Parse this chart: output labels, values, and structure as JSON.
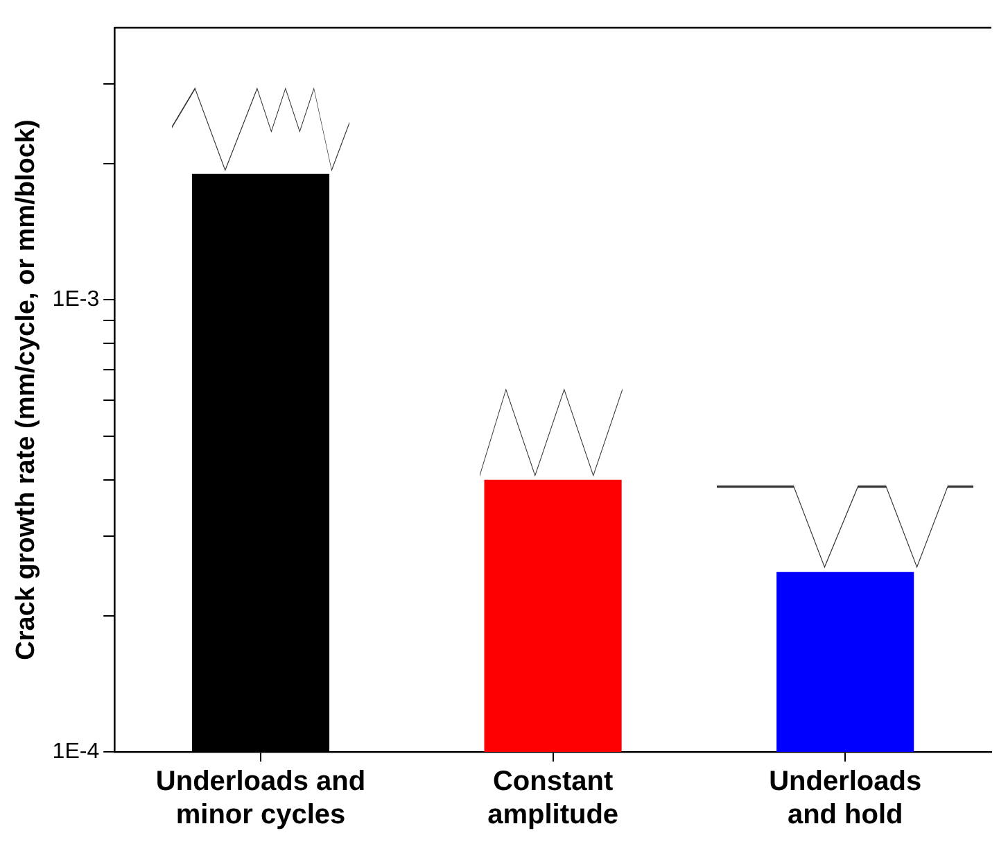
{
  "chart_data": {
    "type": "bar",
    "ylabel": "Crack growth rate (mm/cycle, or mm/block)",
    "categories": [
      "Underloads and\nminor cycles",
      "Constant\namplitude",
      "Underloads\nand hold"
    ],
    "values": [
      0.0019,
      0.0004,
      0.00025
    ],
    "colors": [
      "#000000",
      "#ff0000",
      "#0000ff"
    ],
    "log": "y",
    "ylim": [
      0.0001,
      0.004
    ],
    "yticks": [
      {
        "value": 0.0001,
        "label": "1E-4"
      },
      {
        "value": 0.0002,
        "label": null
      },
      {
        "value": 0.0003,
        "label": null
      },
      {
        "value": 0.0004,
        "label": null
      },
      {
        "value": 0.0005,
        "label": null
      },
      {
        "value": 0.0006,
        "label": null
      },
      {
        "value": 0.0007,
        "label": null
      },
      {
        "value": 0.0008,
        "label": null
      },
      {
        "value": 0.0009,
        "label": null
      },
      {
        "value": 0.001,
        "label": "1E-3"
      },
      {
        "value": 0.002,
        "label": null
      },
      {
        "value": 0.003,
        "label": null
      }
    ],
    "grid": false,
    "legend": false
  }
}
